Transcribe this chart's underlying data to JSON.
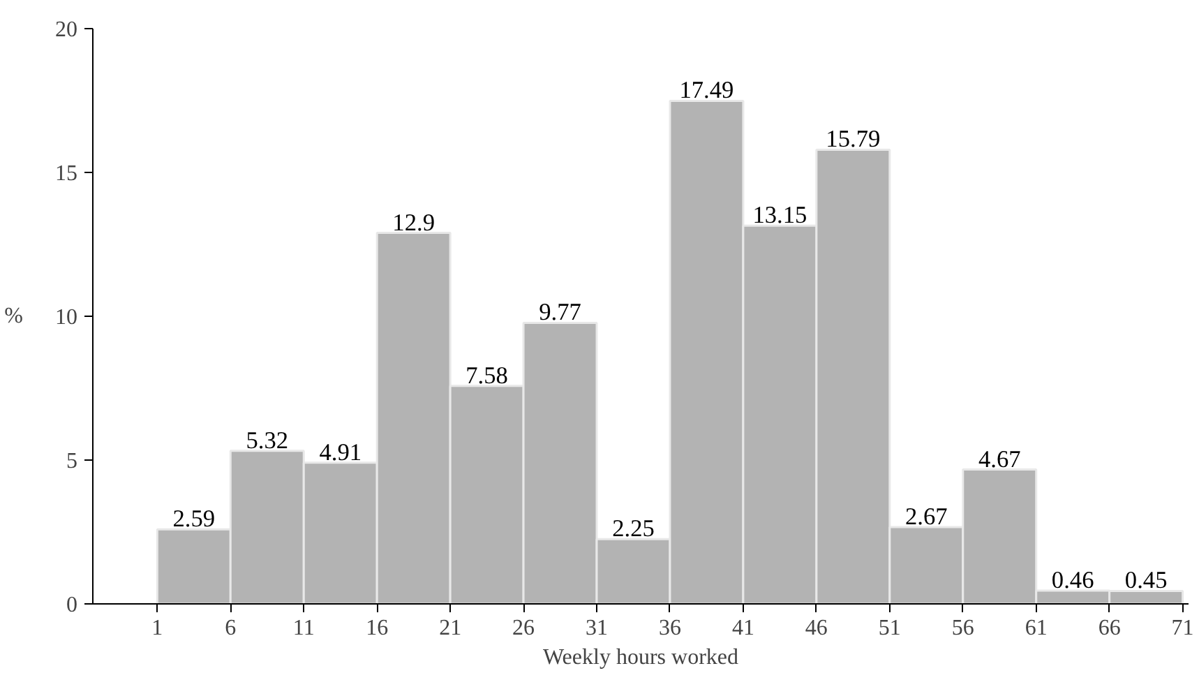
{
  "chart_data": {
    "type": "histogram",
    "xlabel": "Weekly hours worked",
    "ylabel": "%",
    "bins": [
      1,
      6,
      11,
      16,
      21,
      26,
      31,
      36,
      41,
      46,
      51,
      56,
      61,
      66,
      71
    ],
    "values": [
      2.59,
      5.32,
      4.91,
      12.9,
      7.58,
      9.77,
      2.25,
      17.49,
      13.15,
      15.79,
      2.67,
      4.67,
      0.46,
      0.45
    ],
    "color": "#b3b3b3",
    "data_labels": true,
    "grid": false,
    "xlim": [
      -3.4,
      71.4
    ],
    "ylim": [
      0,
      20
    ],
    "xticks": [
      1,
      6,
      11,
      16,
      21,
      26,
      31,
      36,
      41,
      46,
      51,
      56,
      61,
      66,
      71
    ],
    "yticks": [
      0,
      5,
      10,
      15,
      20
    ]
  }
}
